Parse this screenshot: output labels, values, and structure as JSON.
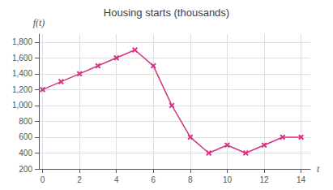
{
  "chart_data": {
    "type": "line",
    "title": "Housing starts (thousands)",
    "x_label": "t",
    "y_label": "f(t)",
    "x": [
      0,
      1,
      2,
      3,
      4,
      5,
      6,
      7,
      8,
      9,
      10,
      11,
      12,
      13,
      14
    ],
    "values": [
      1200,
      1300,
      1400,
      1500,
      1600,
      1700,
      1500,
      1000,
      600,
      400,
      500,
      400,
      500,
      600,
      600
    ],
    "color": "#d63384",
    "marker": "x",
    "xlim": [
      -0.2,
      14.5
    ],
    "xticks": [
      0,
      2,
      4,
      6,
      8,
      10,
      12,
      14
    ],
    "ylim": [
      200,
      1900
    ],
    "yticks": [
      200,
      400,
      600,
      800,
      {
        "value": 1000,
        "label": "1,000"
      },
      {
        "value": 1200,
        "label": "1,200"
      },
      {
        "value": 1400,
        "label": "1,400"
      },
      {
        "value": 1600,
        "label": "1,600"
      },
      {
        "value": 1800,
        "label": "1,800"
      }
    ],
    "grid": true
  }
}
